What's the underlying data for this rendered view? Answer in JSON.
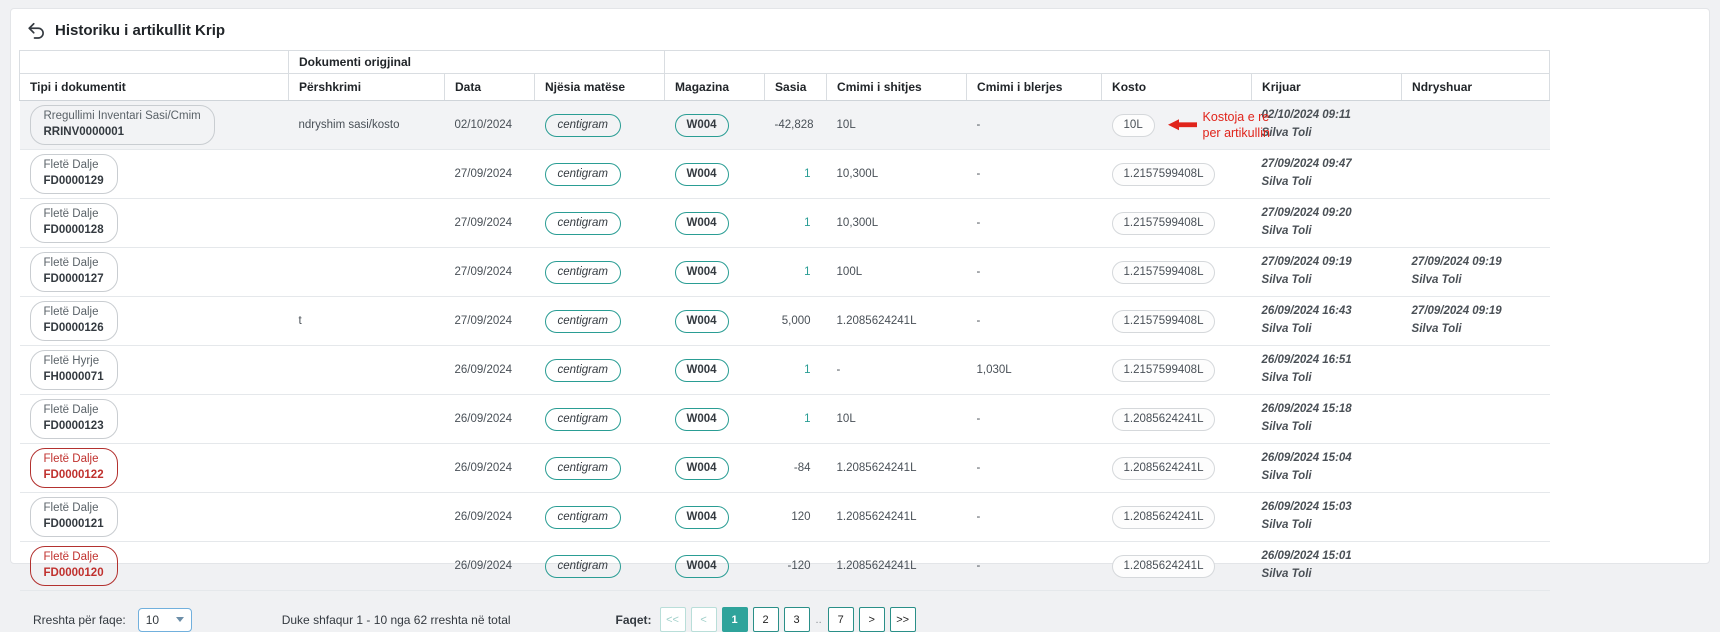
{
  "page": {
    "title": "Historiku i artikullit Krip"
  },
  "table": {
    "group_header": "Dokumenti origjinal",
    "columns": [
      "Tipi i dokumentit",
      "Përshkrimi",
      "Data",
      "Njësia matëse",
      "Magazina",
      "Sasia",
      "Cmimi i shitjes",
      "Cmimi i blerjes",
      "Kosto",
      "Krijuar",
      "Ndryshuar"
    ],
    "rows": [
      {
        "doc_type": "Rregullimi Inventari Sasi/Cmim",
        "doc_number": "RRINV0000001",
        "badge_variant": "normal",
        "highlighted": true,
        "pershkrimi": "ndryshim sasi/kosto",
        "data": "02/10/2024",
        "njesia": "centigram",
        "magazina": "W004",
        "sasia": "-42,828",
        "sasia_teal": false,
        "cmimi_shitjes": "10L",
        "cmimi_blerjes": "-",
        "kosto": "10L",
        "krijuar_date": "02/10/2024 09:11",
        "krijuar_user": "Silva Toli",
        "ndryshuar_date": "",
        "ndryshuar_user": "",
        "annotation": {
          "line1": "Kostoja e re",
          "line2": "per artikullin"
        }
      },
      {
        "doc_type": "Fletë Dalje",
        "doc_number": "FD0000129",
        "badge_variant": "normal",
        "highlighted": false,
        "pershkrimi": "",
        "data": "27/09/2024",
        "njesia": "centigram",
        "magazina": "W004",
        "sasia": "1",
        "sasia_teal": true,
        "cmimi_shitjes": "10,300L",
        "cmimi_blerjes": "-",
        "kosto": "1.2157599408L",
        "krijuar_date": "27/09/2024 09:47",
        "krijuar_user": "Silva Toli",
        "ndryshuar_date": "",
        "ndryshuar_user": ""
      },
      {
        "doc_type": "Fletë Dalje",
        "doc_number": "FD0000128",
        "badge_variant": "normal",
        "highlighted": false,
        "pershkrimi": "",
        "data": "27/09/2024",
        "njesia": "centigram",
        "magazina": "W004",
        "sasia": "1",
        "sasia_teal": true,
        "cmimi_shitjes": "10,300L",
        "cmimi_blerjes": "-",
        "kosto": "1.2157599408L",
        "krijuar_date": "27/09/2024 09:20",
        "krijuar_user": "Silva Toli",
        "ndryshuar_date": "",
        "ndryshuar_user": ""
      },
      {
        "doc_type": "Fletë Dalje",
        "doc_number": "FD0000127",
        "badge_variant": "normal",
        "highlighted": false,
        "pershkrimi": "",
        "data": "27/09/2024",
        "njesia": "centigram",
        "magazina": "W004",
        "sasia": "1",
        "sasia_teal": true,
        "cmimi_shitjes": "100L",
        "cmimi_blerjes": "-",
        "kosto": "1.2157599408L",
        "krijuar_date": "27/09/2024 09:19",
        "krijuar_user": "Silva Toli",
        "ndryshuar_date": "27/09/2024 09:19",
        "ndryshuar_user": "Silva Toli"
      },
      {
        "doc_type": "Fletë Dalje",
        "doc_number": "FD0000126",
        "badge_variant": "normal",
        "highlighted": false,
        "pershkrimi": "t",
        "data": "27/09/2024",
        "njesia": "centigram",
        "magazina": "W004",
        "sasia": "5,000",
        "sasia_teal": false,
        "cmimi_shitjes": "1.2085624241L",
        "cmimi_blerjes": "-",
        "kosto": "1.2157599408L",
        "krijuar_date": "26/09/2024 16:43",
        "krijuar_user": "Silva Toli",
        "ndryshuar_date": "27/09/2024 09:19",
        "ndryshuar_user": "Silva Toli"
      },
      {
        "doc_type": "Fletë Hyrje",
        "doc_number": "FH0000071",
        "badge_variant": "normal",
        "highlighted": false,
        "pershkrimi": "",
        "data": "26/09/2024",
        "njesia": "centigram",
        "magazina": "W004",
        "sasia": "1",
        "sasia_teal": true,
        "cmimi_shitjes": "-",
        "cmimi_blerjes": "1,030L",
        "kosto": "1.2157599408L",
        "krijuar_date": "26/09/2024 16:51",
        "krijuar_user": "Silva Toli",
        "ndryshuar_date": "",
        "ndryshuar_user": ""
      },
      {
        "doc_type": "Fletë Dalje",
        "doc_number": "FD0000123",
        "badge_variant": "normal",
        "highlighted": false,
        "pershkrimi": "",
        "data": "26/09/2024",
        "njesia": "centigram",
        "magazina": "W004",
        "sasia": "1",
        "sasia_teal": true,
        "cmimi_shitjes": "10L",
        "cmimi_blerjes": "-",
        "kosto": "1.2085624241L",
        "krijuar_date": "26/09/2024 15:18",
        "krijuar_user": "Silva Toli",
        "ndryshuar_date": "",
        "ndryshuar_user": ""
      },
      {
        "doc_type": "Fletë Dalje",
        "doc_number": "FD0000122",
        "badge_variant": "red",
        "highlighted": false,
        "pershkrimi": "",
        "data": "26/09/2024",
        "njesia": "centigram",
        "magazina": "W004",
        "sasia": "-84",
        "sasia_teal": false,
        "cmimi_shitjes": "1.2085624241L",
        "cmimi_blerjes": "-",
        "kosto": "1.2085624241L",
        "krijuar_date": "26/09/2024 15:04",
        "krijuar_user": "Silva Toli",
        "ndryshuar_date": "",
        "ndryshuar_user": ""
      },
      {
        "doc_type": "Fletë Dalje",
        "doc_number": "FD0000121",
        "badge_variant": "normal",
        "highlighted": false,
        "pershkrimi": "",
        "data": "26/09/2024",
        "njesia": "centigram",
        "magazina": "W004",
        "sasia": "120",
        "sasia_teal": false,
        "cmimi_shitjes": "1.2085624241L",
        "cmimi_blerjes": "-",
        "kosto": "1.2085624241L",
        "krijuar_date": "26/09/2024 15:03",
        "krijuar_user": "Silva Toli",
        "ndryshuar_date": "",
        "ndryshuar_user": ""
      },
      {
        "doc_type": "Fletë Dalje",
        "doc_number": "FD0000120",
        "badge_variant": "red",
        "highlighted": false,
        "pershkrimi": "",
        "data": "26/09/2024",
        "njesia": "centigram",
        "magazina": "W004",
        "sasia": "-120",
        "sasia_teal": false,
        "cmimi_shitjes": "1.2085624241L",
        "cmimi_blerjes": "-",
        "kosto": "1.2085624241L",
        "krijuar_date": "26/09/2024 15:01",
        "krijuar_user": "Silva Toli",
        "ndryshuar_date": "",
        "ndryshuar_user": ""
      }
    ]
  },
  "footer": {
    "rows_per_page_label": "Rreshta për faqe:",
    "rows_per_page_value": "10",
    "showing_text": "Duke shfaqur 1 - 10 nga 62 rreshta në total",
    "pages_label": "Faqet:",
    "pagination": [
      {
        "label": "<<",
        "state": "disabled"
      },
      {
        "label": "<",
        "state": "disabled"
      },
      {
        "label": "1",
        "state": "active"
      },
      {
        "label": "2",
        "state": "normal"
      },
      {
        "label": "3",
        "state": "normal"
      },
      {
        "label": "..",
        "state": "ellipsis"
      },
      {
        "label": "7",
        "state": "normal"
      },
      {
        "label": ">",
        "state": "normal"
      },
      {
        "label": ">>",
        "state": "normal"
      }
    ]
  },
  "colors": {
    "teal_badge": "#2a9d94",
    "active_page": "#2fa39b",
    "red_badge": "#c0312e",
    "annotation_red": "#e0241b",
    "select_border": "#71b0dd",
    "row_highlight": "#f2f3f5"
  }
}
